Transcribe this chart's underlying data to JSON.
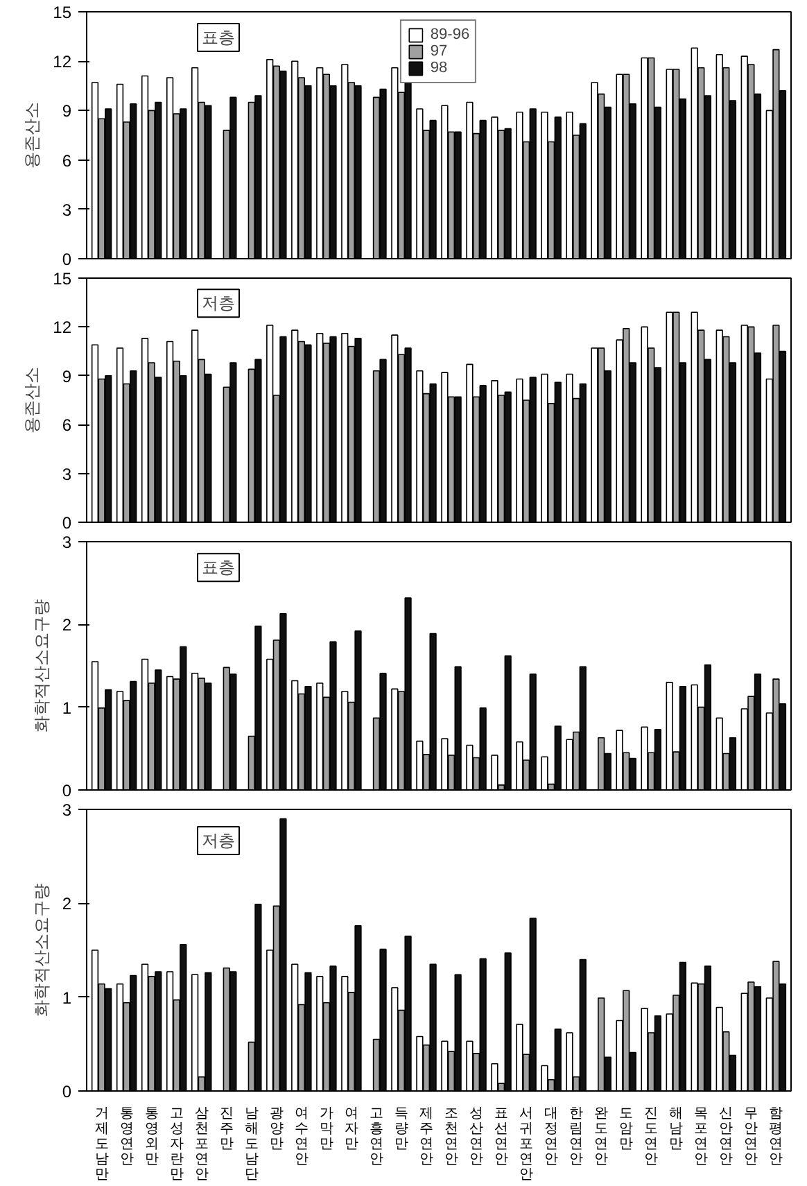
{
  "chart_data": [
    {
      "type": "bar",
      "ylabel": "용존산소",
      "annotations": [
        "표층"
      ],
      "legend": "top",
      "tick_labels": "y",
      "grid": false,
      "ylim": [
        0,
        15
      ],
      "yticks": [
        0,
        3,
        6,
        9,
        12,
        15
      ],
      "categories": [
        "거제도남만",
        "통영연안",
        "통영외만",
        "고성자란만",
        "삼천포연안",
        "진주만",
        "남해도남단",
        "광양만",
        "여수연안",
        "가막만",
        "여자만",
        "고흥연안",
        "득량만",
        "제주연안",
        "조천연안",
        "성산연안",
        "표선연안",
        "서귀포연안",
        "대정연안",
        "한림연안",
        "완도연안",
        "도암만",
        "진도연안",
        "해남만",
        "목포연안",
        "신안연안",
        "무안연안",
        "함평연안"
      ],
      "series": [
        {
          "name": "89-96",
          "color": "#ffffff",
          "values": [
            10.7,
            10.6,
            11.1,
            11.0,
            11.6,
            null,
            null,
            12.1,
            12.0,
            11.6,
            11.8,
            null,
            11.6,
            9.1,
            9.3,
            9.5,
            8.6,
            8.9,
            8.9,
            8.9,
            10.7,
            11.2,
            12.2,
            11.5,
            12.8,
            12.4,
            12.3,
            9.0
          ]
        },
        {
          "name": "97",
          "color": "#a0a0a0",
          "values": [
            8.5,
            8.3,
            9.0,
            8.8,
            9.5,
            7.8,
            9.5,
            11.7,
            11.0,
            11.2,
            10.7,
            9.8,
            10.1,
            7.8,
            7.7,
            7.6,
            7.8,
            7.1,
            7.1,
            7.5,
            10.0,
            11.2,
            12.2,
            11.5,
            11.6,
            11.6,
            11.8,
            12.7
          ]
        },
        {
          "name": "98",
          "color": "#111111",
          "values": [
            9.1,
            9.4,
            9.5,
            9.1,
            9.3,
            9.8,
            9.9,
            11.4,
            10.5,
            10.5,
            10.5,
            10.3,
            10.7,
            8.4,
            7.7,
            8.4,
            7.9,
            9.1,
            8.6,
            8.2,
            9.2,
            9.4,
            9.2,
            9.7,
            9.9,
            9.6,
            10.0,
            10.2
          ]
        }
      ]
    },
    {
      "type": "bar",
      "ylabel": "용존산소",
      "annotations": [
        "저층"
      ],
      "tick_labels": "y",
      "grid": false,
      "ylim": [
        0,
        15
      ],
      "yticks": [
        0,
        3,
        6,
        9,
        12,
        15
      ],
      "categories": [
        "거제도남만",
        "통영연안",
        "통영외만",
        "고성자란만",
        "삼천포연안",
        "진주만",
        "남해도남단",
        "광양만",
        "여수연안",
        "가막만",
        "여자만",
        "고흥연안",
        "득량만",
        "제주연안",
        "조천연안",
        "성산연안",
        "표선연안",
        "서귀포연안",
        "대정연안",
        "한림연안",
        "완도연안",
        "도암만",
        "진도연안",
        "해남만",
        "목포연안",
        "신안연안",
        "무안연안",
        "함평연안"
      ],
      "series": [
        {
          "color": "#ffffff",
          "values": [
            10.9,
            10.7,
            11.3,
            11.1,
            11.8,
            null,
            null,
            12.1,
            11.8,
            11.6,
            11.6,
            null,
            11.5,
            9.3,
            9.2,
            9.7,
            8.7,
            8.8,
            9.1,
            9.1,
            10.7,
            11.2,
            12.0,
            12.9,
            12.9,
            11.8,
            12.1,
            8.8
          ]
        },
        {
          "color": "#a0a0a0",
          "values": [
            8.8,
            8.5,
            9.8,
            9.9,
            10.0,
            8.3,
            9.4,
            7.8,
            11.1,
            11.0,
            10.8,
            9.3,
            10.3,
            7.9,
            7.7,
            7.7,
            7.8,
            7.5,
            7.3,
            7.6,
            10.7,
            11.9,
            10.7,
            12.9,
            11.8,
            11.4,
            12.0,
            12.1
          ]
        },
        {
          "color": "#111111",
          "values": [
            9.0,
            9.3,
            8.9,
            9.0,
            9.1,
            9.8,
            10.0,
            11.4,
            10.9,
            11.4,
            11.3,
            10.0,
            10.7,
            8.5,
            7.7,
            8.4,
            8.0,
            8.9,
            8.6,
            8.5,
            9.3,
            9.8,
            9.5,
            9.8,
            10.0,
            9.8,
            10.4,
            10.5
          ]
        }
      ]
    },
    {
      "type": "bar",
      "ylabel": "화학적산소요구량",
      "annotations": [
        "표층"
      ],
      "tick_labels": "y",
      "grid": false,
      "ylim": [
        0,
        3
      ],
      "yticks": [
        0,
        1,
        2,
        3
      ],
      "categories": [
        "거제도남만",
        "통영연안",
        "통영외만",
        "고성자란만",
        "삼천포연안",
        "진주만",
        "남해도남단",
        "광양만",
        "여수연안",
        "가막만",
        "여자만",
        "고흥연안",
        "득량만",
        "제주연안",
        "조천연안",
        "성산연안",
        "표선연안",
        "서귀포연안",
        "대정연안",
        "한림연안",
        "완도연안",
        "도암만",
        "진도연안",
        "해남만",
        "목포연안",
        "신안연안",
        "무안연안",
        "함평연안"
      ],
      "series": [
        {
          "color": "#ffffff",
          "values": [
            1.55,
            1.19,
            1.58,
            1.37,
            1.41,
            null,
            null,
            1.58,
            1.32,
            1.29,
            1.19,
            null,
            1.22,
            0.59,
            0.62,
            0.54,
            0.42,
            0.58,
            0.4,
            0.61,
            null,
            0.72,
            0.76,
            1.3,
            1.27,
            0.87,
            0.98,
            0.93
          ]
        },
        {
          "color": "#a0a0a0",
          "values": [
            0.99,
            1.08,
            1.29,
            1.34,
            1.35,
            1.48,
            0.65,
            1.81,
            1.16,
            1.12,
            1.06,
            0.87,
            1.19,
            0.43,
            0.42,
            0.39,
            0.06,
            0.36,
            0.07,
            0.7,
            0.63,
            0.45,
            0.45,
            0.46,
            1.0,
            0.44,
            1.13,
            1.34
          ]
        },
        {
          "color": "#111111",
          "values": [
            1.21,
            1.31,
            1.45,
            1.73,
            1.29,
            1.4,
            1.98,
            2.13,
            1.25,
            1.79,
            1.92,
            1.41,
            2.32,
            1.89,
            1.49,
            0.99,
            1.62,
            1.4,
            0.77,
            1.49,
            0.44,
            0.38,
            0.73,
            1.25,
            1.51,
            0.63,
            1.4,
            1.04
          ]
        }
      ]
    },
    {
      "type": "bar",
      "ylabel": "화학적산소요구량",
      "annotations": [
        "저층"
      ],
      "grid": false,
      "ylim": [
        0,
        3
      ],
      "yticks": [
        0,
        1,
        2,
        3
      ],
      "categories": [
        "거제도남만",
        "통영연안",
        "통영외만",
        "고성자란만",
        "삼천포연안",
        "진주만",
        "남해도남단",
        "광양만",
        "여수연안",
        "가막만",
        "여자만",
        "고흥연안",
        "득량만",
        "제주연안",
        "조천연안",
        "성산연안",
        "표선연안",
        "서귀포연안",
        "대정연안",
        "한림연안",
        "완도연안",
        "도암만",
        "진도연안",
        "해남만",
        "목포연안",
        "신안연안",
        "무안연안",
        "함평연안"
      ],
      "series": [
        {
          "color": "#ffffff",
          "values": [
            1.5,
            1.14,
            1.35,
            1.27,
            1.24,
            null,
            null,
            1.5,
            1.35,
            1.22,
            1.22,
            null,
            1.1,
            0.58,
            0.53,
            0.53,
            0.29,
            0.71,
            0.27,
            0.62,
            null,
            0.75,
            0.88,
            0.82,
            1.15,
            0.89,
            1.04,
            0.99
          ]
        },
        {
          "color": "#a0a0a0",
          "values": [
            1.14,
            0.94,
            1.22,
            0.97,
            0.15,
            1.31,
            0.52,
            1.97,
            0.92,
            0.94,
            1.05,
            0.55,
            0.86,
            0.49,
            0.42,
            0.4,
            0.08,
            0.39,
            0.12,
            0.15,
            0.99,
            1.07,
            0.62,
            1.02,
            1.14,
            0.63,
            1.16,
            1.38
          ]
        },
        {
          "color": "#111111",
          "values": [
            1.09,
            1.23,
            1.27,
            1.56,
            1.26,
            1.27,
            1.99,
            2.9,
            1.26,
            1.33,
            1.76,
            1.51,
            1.65,
            1.35,
            1.24,
            1.41,
            1.47,
            1.84,
            0.66,
            1.4,
            0.36,
            0.41,
            0.8,
            1.37,
            1.33,
            0.38,
            1.11,
            1.14
          ]
        }
      ]
    }
  ]
}
